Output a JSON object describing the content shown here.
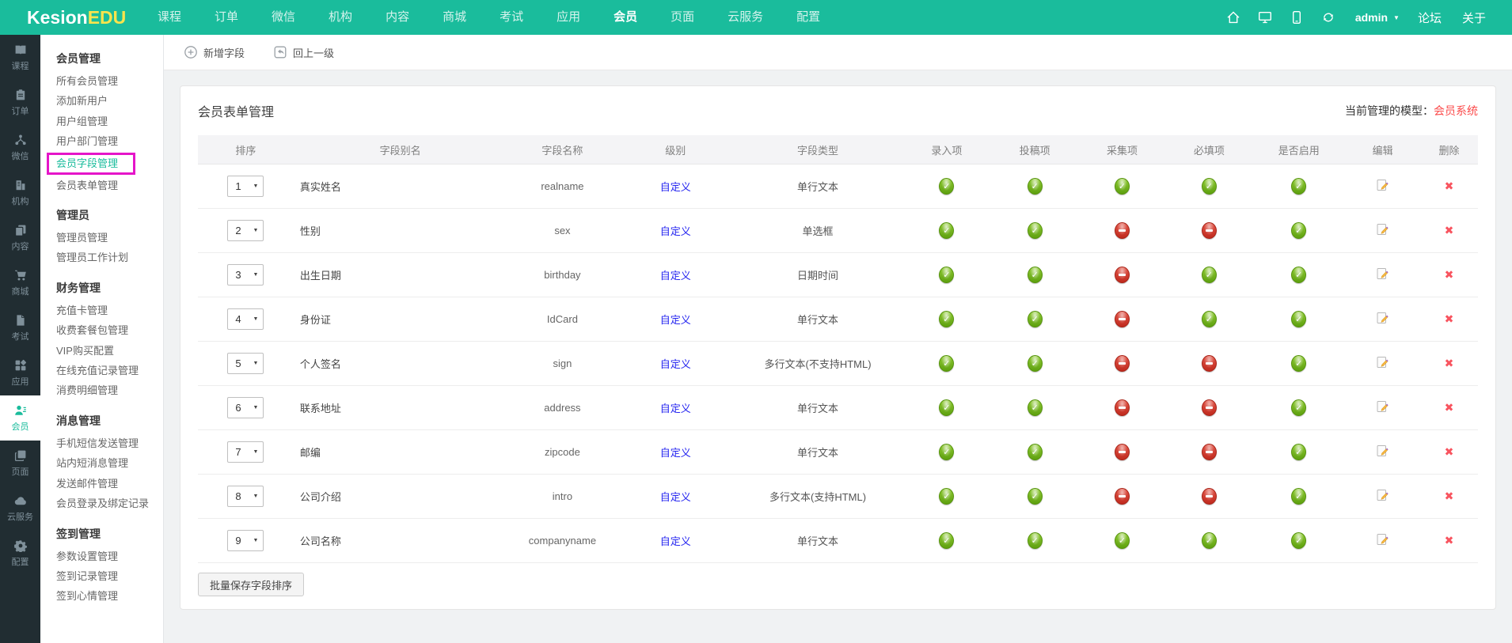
{
  "brand": {
    "left": "Kesion",
    "right": "EDU"
  },
  "topnav": {
    "items": [
      "课程",
      "订单",
      "微信",
      "机构",
      "内容",
      "商城",
      "考试",
      "应用",
      "会员",
      "页面",
      "云服务",
      "配置"
    ],
    "active": "会员"
  },
  "topnav_right": {
    "icons": [
      "home-icon",
      "monitor-icon",
      "mobile-icon",
      "refresh-icon"
    ],
    "admin": "admin",
    "forum": "论坛",
    "about": "关于"
  },
  "iconbar": {
    "items": [
      {
        "id": "course",
        "label": "课程"
      },
      {
        "id": "order",
        "label": "订单"
      },
      {
        "id": "wechat",
        "label": "微信"
      },
      {
        "id": "org",
        "label": "机构"
      },
      {
        "id": "content",
        "label": "内容"
      },
      {
        "id": "mall",
        "label": "商城"
      },
      {
        "id": "exam",
        "label": "考试"
      },
      {
        "id": "app",
        "label": "应用"
      },
      {
        "id": "member",
        "label": "会员",
        "active": true
      },
      {
        "id": "page",
        "label": "页面"
      },
      {
        "id": "cloud",
        "label": "云服务"
      },
      {
        "id": "config",
        "label": "配置"
      }
    ]
  },
  "sidebar": {
    "sections": [
      {
        "title": "会员管理",
        "items": [
          "所有会员管理",
          "添加新用户",
          "用户组管理",
          "用户部门管理",
          "会员字段管理",
          "会员表单管理"
        ],
        "active": "会员字段管理"
      },
      {
        "title": "管理员",
        "items": [
          "管理员管理",
          "管理员工作计划"
        ]
      },
      {
        "title": "财务管理",
        "items": [
          "充值卡管理",
          "收费套餐包管理",
          "VIP购买配置",
          "在线充值记录管理",
          "消费明细管理"
        ]
      },
      {
        "title": "消息管理",
        "items": [
          "手机短信发送管理",
          "站内短消息管理",
          "发送邮件管理",
          "会员登录及绑定记录"
        ]
      },
      {
        "title": "签到管理",
        "items": [
          "参数设置管理",
          "签到记录管理",
          "签到心情管理"
        ]
      }
    ]
  },
  "toolbar": {
    "add_label": "新增字段",
    "back_label": "回上一级"
  },
  "card": {
    "title": "会员表单管理",
    "model_label": "当前管理的模型：",
    "model_value": "会员系统"
  },
  "table": {
    "headers": [
      "排序",
      "字段别名",
      "字段名称",
      "级别",
      "字段类型",
      "录入项",
      "投稿项",
      "采集项",
      "必填项",
      "是否启用",
      "编辑",
      "删除"
    ],
    "rows": [
      {
        "order": "1",
        "alias": "真实姓名",
        "name": "realname",
        "level": "自定义",
        "type": "单行文本",
        "flags": [
          true,
          true,
          true,
          true,
          true
        ]
      },
      {
        "order": "2",
        "alias": "性别",
        "name": "sex",
        "level": "自定义",
        "type": "单选框",
        "flags": [
          true,
          true,
          false,
          false,
          true
        ]
      },
      {
        "order": "3",
        "alias": "出生日期",
        "name": "birthday",
        "level": "自定义",
        "type": "日期时间",
        "flags": [
          true,
          true,
          false,
          true,
          true
        ]
      },
      {
        "order": "4",
        "alias": "身份证",
        "name": "IdCard",
        "level": "自定义",
        "type": "单行文本",
        "flags": [
          true,
          true,
          false,
          true,
          true
        ]
      },
      {
        "order": "5",
        "alias": "个人签名",
        "name": "sign",
        "level": "自定义",
        "type": "多行文本(不支持HTML)",
        "flags": [
          true,
          true,
          false,
          false,
          true
        ]
      },
      {
        "order": "6",
        "alias": "联系地址",
        "name": "address",
        "level": "自定义",
        "type": "单行文本",
        "flags": [
          true,
          true,
          false,
          false,
          true
        ]
      },
      {
        "order": "7",
        "alias": "邮编",
        "name": "zipcode",
        "level": "自定义",
        "type": "单行文本",
        "flags": [
          true,
          true,
          false,
          false,
          true
        ]
      },
      {
        "order": "8",
        "alias": "公司介绍",
        "name": "intro",
        "level": "自定义",
        "type": "多行文本(支持HTML)",
        "flags": [
          true,
          true,
          false,
          false,
          true
        ]
      },
      {
        "order": "9",
        "alias": "公司名称",
        "name": "companyname",
        "level": "自定义",
        "type": "单行文本",
        "flags": [
          true,
          true,
          true,
          true,
          true
        ]
      }
    ],
    "save_button": "批量保存字段排序"
  },
  "colors": {
    "accent": "#1abc9c",
    "sidebar_dark": "#212d32",
    "highlight_box": "#e515c9",
    "link_blue": "#2525f0",
    "model_red": "#fb4a4a",
    "status_on": "#6fb31a",
    "status_off": "#cf3527"
  }
}
